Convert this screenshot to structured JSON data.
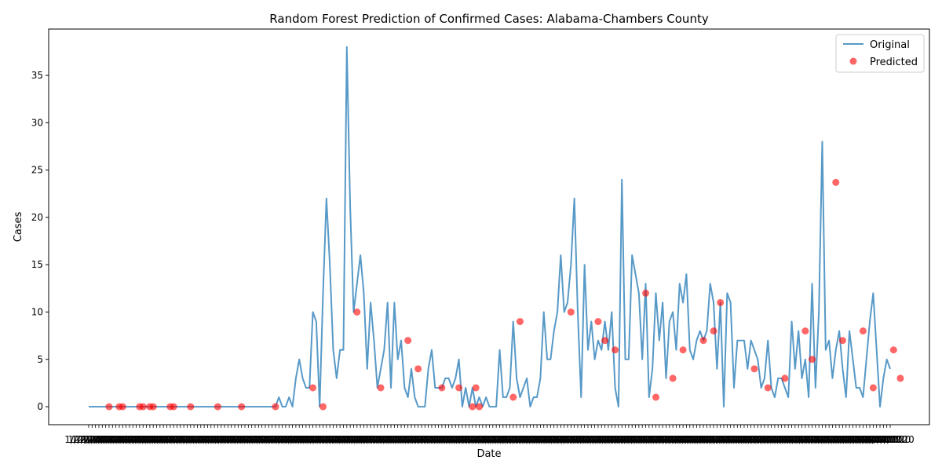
{
  "chart_data": {
    "type": "line",
    "title": "Random Forest Prediction of Confirmed Cases: Alabama-Chambers County",
    "xlabel": "Date",
    "ylabel": "Cases",
    "ylim": [
      -1.9,
      39.9
    ],
    "yticks": [
      0,
      5,
      10,
      15,
      20,
      25,
      30,
      35
    ],
    "x_tick_text": "1/22/2020",
    "legend": {
      "position": "top-right",
      "entries": [
        "Original",
        "Predicted"
      ]
    },
    "grid": false,
    "colors": {
      "original": "#1f77b4",
      "predicted": "#ff0000"
    },
    "series": [
      {
        "name": "Original",
        "style": "line",
        "values": [
          0,
          0,
          0,
          0,
          0,
          0,
          0,
          0,
          0,
          0,
          0,
          0,
          0,
          0,
          0,
          0,
          0,
          0,
          0,
          0,
          0,
          0,
          0,
          0,
          0,
          0,
          0,
          0,
          0,
          0,
          0,
          0,
          0,
          0,
          0,
          0,
          0,
          0,
          0,
          0,
          0,
          0,
          0,
          0,
          0,
          0,
          0,
          0,
          0,
          0,
          0,
          0,
          0,
          0,
          0,
          0,
          1,
          0,
          0,
          1,
          0,
          3,
          5,
          3,
          2,
          2,
          10,
          9,
          0,
          12,
          22,
          15,
          6,
          3,
          6,
          6,
          38,
          21,
          10,
          13,
          16,
          12,
          4,
          11,
          7,
          2,
          4,
          6,
          11,
          2,
          11,
          5,
          7,
          2,
          1,
          4,
          1,
          0,
          0,
          0,
          4,
          6,
          2,
          2,
          2,
          3,
          3,
          2,
          3,
          5,
          0,
          2,
          0,
          2,
          0,
          1,
          0,
          1,
          0,
          0,
          0,
          6,
          1,
          1,
          2,
          9,
          3,
          1,
          2,
          3,
          0,
          1,
          1,
          3,
          10,
          5,
          5,
          8,
          10,
          16,
          10,
          11,
          15,
          22,
          10,
          1,
          15,
          6,
          9,
          5,
          7,
          6,
          9,
          6,
          10,
          2,
          0,
          24,
          5,
          5,
          16,
          14,
          12,
          5,
          13,
          1,
          4,
          12,
          7,
          11,
          3,
          9,
          10,
          6,
          13,
          11,
          14,
          6,
          5,
          7,
          8,
          7,
          8,
          13,
          11,
          4,
          11,
          0,
          12,
          11,
          2,
          7,
          7,
          7,
          4,
          7,
          6,
          5,
          2,
          3,
          7,
          2,
          1,
          3,
          3,
          2,
          1,
          9,
          4,
          8,
          3,
          5,
          1,
          13,
          2,
          10,
          28,
          6,
          7,
          3,
          6,
          8,
          4,
          1,
          8,
          5,
          2,
          2,
          1,
          5,
          9,
          12,
          6,
          0,
          3,
          5,
          4
        ]
      },
      {
        "name": "Predicted",
        "style": "scatter",
        "points": [
          [
            6,
            0
          ],
          [
            9,
            0
          ],
          [
            10,
            0
          ],
          [
            15,
            0
          ],
          [
            16,
            0
          ],
          [
            18,
            0
          ],
          [
            19,
            0
          ],
          [
            24,
            0
          ],
          [
            25,
            0
          ],
          [
            30,
            0
          ],
          [
            38,
            0
          ],
          [
            45,
            0
          ],
          [
            55,
            0
          ],
          [
            66,
            2
          ],
          [
            69,
            0
          ],
          [
            79,
            10
          ],
          [
            86,
            2
          ],
          [
            94,
            7
          ],
          [
            97,
            4
          ],
          [
            104,
            2
          ],
          [
            109,
            2
          ],
          [
            113,
            0
          ],
          [
            114,
            2
          ],
          [
            115,
            0
          ],
          [
            125,
            1
          ],
          [
            127,
            9
          ],
          [
            142,
            10
          ],
          [
            150,
            9
          ],
          [
            152,
            7
          ],
          [
            155,
            6
          ],
          [
            164,
            12
          ],
          [
            167,
            1
          ],
          [
            172,
            3
          ],
          [
            175,
            6
          ],
          [
            181,
            7
          ],
          [
            184,
            8
          ],
          [
            186,
            11
          ],
          [
            196,
            4
          ],
          [
            200,
            2
          ],
          [
            205,
            3
          ],
          [
            211,
            8
          ],
          [
            213,
            5
          ],
          [
            220,
            23.7
          ],
          [
            222,
            7
          ],
          [
            228,
            8
          ],
          [
            231,
            2
          ],
          [
            237,
            6
          ],
          [
            239,
            3
          ]
        ]
      }
    ]
  }
}
